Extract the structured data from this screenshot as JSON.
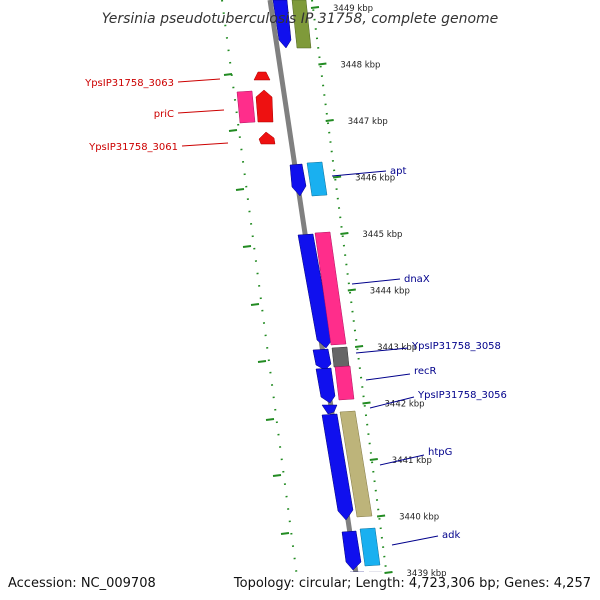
{
  "title": "Yersinia pseudotuberculosis IP 31758, complete genome",
  "footer": {
    "accession": "Accession: NC_009708",
    "summary": "Topology: circular; Length: 4,723,306 bp; Genes: 4,257"
  },
  "colors": {
    "reverse_label": "#cc0000",
    "forward_label": "#00008b",
    "tick": "#228b22",
    "backbone": "#808080"
  },
  "positions": [
    {
      "label": "3449 kbp",
      "kbp": 3449
    },
    {
      "label": "3448 kbp",
      "kbp": 3448
    },
    {
      "label": "3447 kbp",
      "kbp": 3447
    },
    {
      "label": "3446 kbp",
      "kbp": 3446
    },
    {
      "label": "3445 kbp",
      "kbp": 3445
    },
    {
      "label": "3444 kbp",
      "kbp": 3444
    },
    {
      "label": "3443 kbp",
      "kbp": 3443
    },
    {
      "label": "3442 kbp",
      "kbp": 3442
    },
    {
      "label": "3441 kbp",
      "kbp": 3441
    },
    {
      "label": "3440 kbp",
      "kbp": 3440
    },
    {
      "label": "3439 kbp",
      "kbp": 3439
    }
  ],
  "genes": {
    "reverse": [
      "YpsIP31758_3063",
      "priC",
      "YpsIP31758_3061"
    ],
    "forward": [
      "apt",
      "dnaX",
      "YpsIP31758_3058",
      "recR",
      "YpsIP31758_3056",
      "htpG",
      "adk"
    ]
  }
}
